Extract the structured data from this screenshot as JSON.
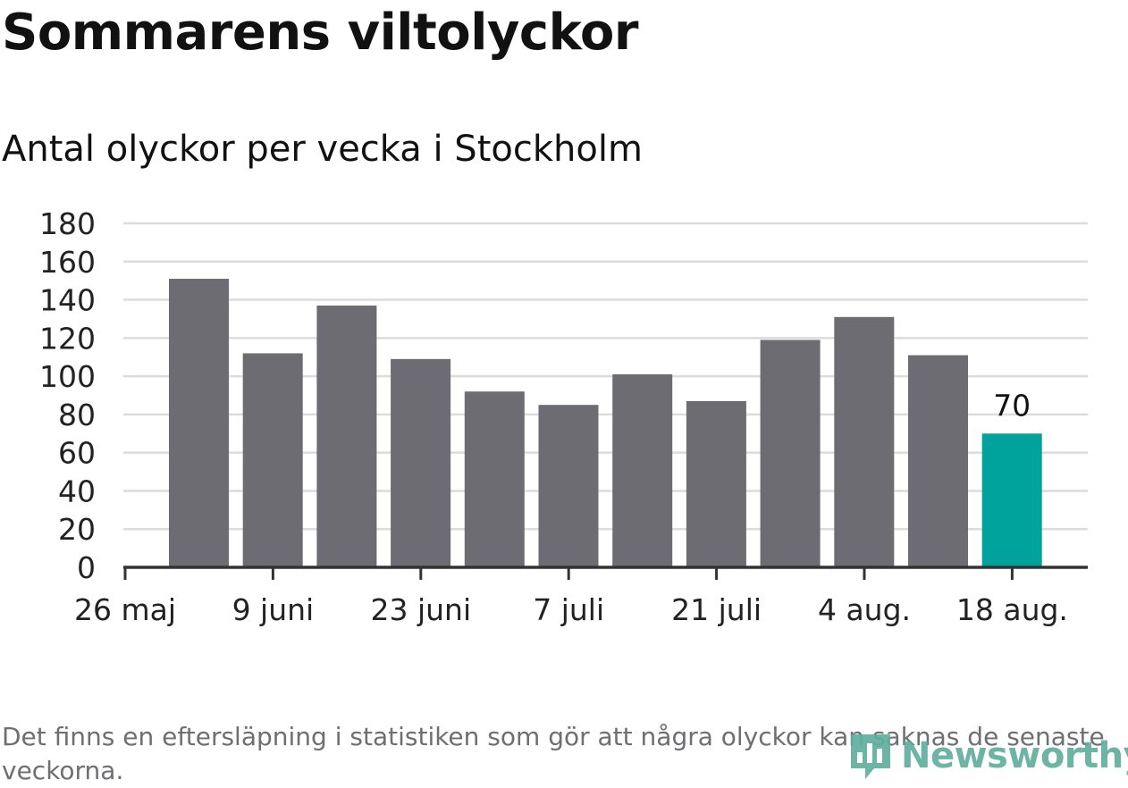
{
  "header": {
    "title": "Sommarens viltolyckor",
    "subtitle": "Antal olyckor per vecka i Stockholm"
  },
  "footnote": "Det finns en eftersläpning i statistiken som gör att några olyckor kan saknas de senaste veckorna.",
  "logo": {
    "text": "Newsworthy",
    "icon": "newsworthy-chart-icon"
  },
  "chart_data": {
    "type": "bar",
    "title": "Antal olyckor per vecka i Stockholm",
    "xlabel": "",
    "ylabel": "",
    "ylim": [
      0,
      180
    ],
    "yticks": [
      0,
      20,
      40,
      60,
      80,
      100,
      120,
      140,
      160,
      180
    ],
    "grid": true,
    "x_tick_labels": [
      "26 maj",
      "9 juni",
      "23 juni",
      "7 juli",
      "21 juli",
      "4 aug.",
      "18 aug."
    ],
    "values": [
      151,
      112,
      137,
      109,
      92,
      85,
      101,
      87,
      119,
      131,
      111,
      70
    ],
    "highlight_index": 11,
    "data_labels": [
      {
        "index": 11,
        "text": "70"
      }
    ],
    "colors": {
      "bar": "#6d6c72",
      "highlight": "#00a39b",
      "grid": "#dcdcdc",
      "axis": "#333333"
    }
  }
}
